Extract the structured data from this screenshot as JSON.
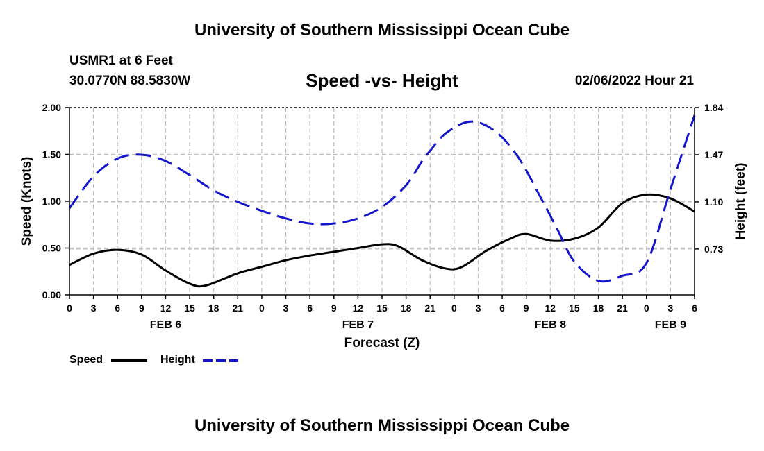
{
  "header": {
    "main_title": "University of Southern Mississippi Ocean Cube",
    "station": "USMR1 at 6 Feet",
    "coordinates": "30.0770N  88.5830W",
    "subtitle": "Speed -vs- Height",
    "datetime": "02/06/2022 Hour 21"
  },
  "footer": {
    "title": "University of Southern Mississippi Ocean Cube"
  },
  "legend": {
    "speed_label": "Speed",
    "height_label": "Height"
  },
  "chart_data": {
    "type": "line",
    "title": "Speed -vs- Height",
    "xlabel": "Forecast (Z)",
    "ylabel": "Speed (Knots)",
    "y2label": "Height (feet)",
    "x_range_hours": [
      0,
      78
    ],
    "ylim": [
      0,
      2.0
    ],
    "y2lim": [
      0.37,
      1.84
    ],
    "yticks": [
      "0.00",
      "0.50",
      "1.00",
      "1.50",
      "2.00"
    ],
    "y2ticks": [
      "0.73",
      "1.10",
      "1.47",
      "1.84"
    ],
    "xtick_labels": [
      "0",
      "3",
      "6",
      "9",
      "12",
      "15",
      "18",
      "21",
      "0",
      "3",
      "6",
      "9",
      "12",
      "15",
      "18",
      "21",
      "0",
      "3",
      "6",
      "9",
      "12",
      "15",
      "18",
      "21",
      "0",
      "3",
      "6"
    ],
    "day_labels": [
      {
        "label": "FEB 6",
        "hour": 12
      },
      {
        "label": "FEB 7",
        "hour": 36
      },
      {
        "label": "FEB 8",
        "hour": 60
      },
      {
        "label": "FEB 9",
        "hour": 75
      }
    ],
    "grid": true,
    "series": [
      {
        "name": "Speed",
        "axis": "left",
        "color": "#000000",
        "dash": "solid",
        "x": [
          0,
          3,
          6,
          9,
          12,
          15,
          17,
          21,
          24,
          27,
          30,
          33,
          36,
          39,
          41,
          44,
          47,
          49,
          52,
          55,
          57,
          60,
          63,
          66,
          69,
          72,
          75,
          78
        ],
        "values": [
          0.32,
          0.44,
          0.48,
          0.43,
          0.26,
          0.12,
          0.1,
          0.23,
          0.3,
          0.37,
          0.42,
          0.46,
          0.5,
          0.54,
          0.52,
          0.37,
          0.28,
          0.3,
          0.47,
          0.6,
          0.65,
          0.58,
          0.6,
          0.72,
          0.98,
          1.07,
          1.03,
          0.89
        ]
      },
      {
        "name": "Height",
        "axis": "right",
        "color": "#1515cc",
        "dash": "dashed",
        "x": [
          0,
          3,
          6,
          9,
          12,
          15,
          18,
          21,
          24,
          27,
          30,
          33,
          36,
          39,
          42,
          44,
          45,
          47,
          50,
          53,
          56,
          59,
          61,
          63,
          66,
          69,
          72,
          75,
          78
        ],
        "values": [
          1.05,
          1.3,
          1.44,
          1.47,
          1.42,
          1.31,
          1.19,
          1.1,
          1.03,
          0.97,
          0.93,
          0.93,
          0.97,
          1.06,
          1.23,
          1.42,
          1.5,
          1.64,
          1.73,
          1.66,
          1.45,
          1.11,
          0.87,
          0.63,
          0.48,
          0.52,
          0.62,
          1.2,
          1.78
        ]
      }
    ]
  }
}
